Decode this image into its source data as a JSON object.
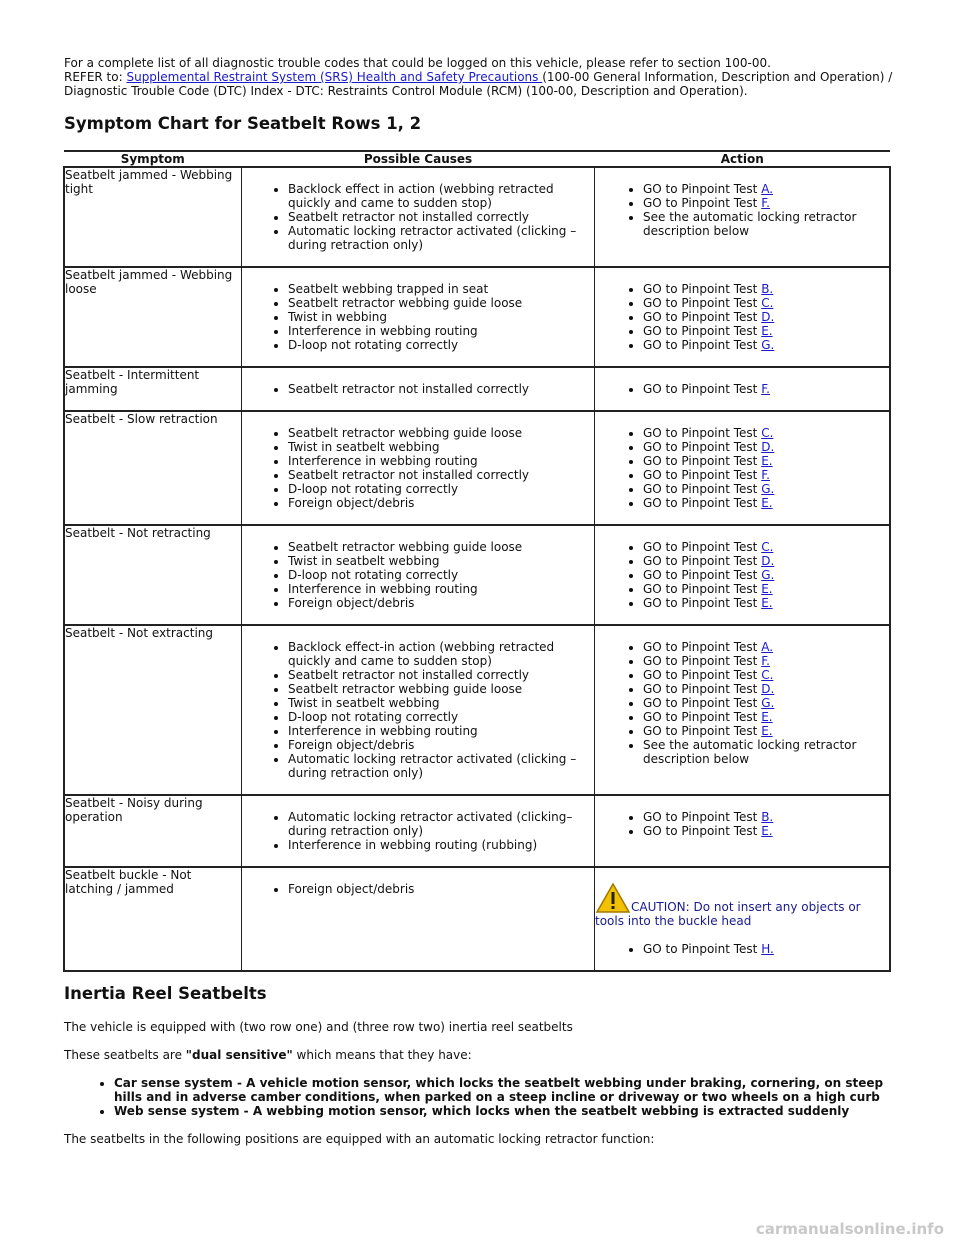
{
  "intro": {
    "line1": "For a complete list of all diagnostic trouble codes that could be logged on this vehicle, please refer to section 100-00.",
    "refer_label": "REFER to: ",
    "refer_link": "Supplemental Restraint System (SRS) Health and Safety Precautions ",
    "refer_rest": "(100-00 General Information, Description and Operation) /",
    "line3": "Diagnostic Trouble Code (DTC) Index - DTC: Restraints Control Module (RCM) (100-00, Description and Operation)."
  },
  "heading": "Symptom Chart for Seatbelt Rows 1, 2",
  "table": {
    "headers": [
      "Symptom",
      "Possible Causes",
      "Action"
    ],
    "rows": [
      {
        "symptom": "Seatbelt jammed - Webbing tight",
        "causes": [
          "Backlock effect in action (webbing retracted quickly and came to sudden stop)",
          "Seatbelt retractor not installed correctly",
          "Automatic locking retractor activated (clicking – during retraction only)"
        ],
        "actions": [
          {
            "text": "GO to Pinpoint Test ",
            "link": "A."
          },
          {
            "text": "GO to Pinpoint Test ",
            "link": "F."
          },
          {
            "text": "See the automatic locking retractor description below"
          }
        ]
      },
      {
        "symptom": "Seatbelt jammed - Webbing loose",
        "causes": [
          "Seatbelt webbing trapped in seat",
          "Seatbelt retractor webbing guide loose",
          "Twist in webbing",
          "Interference in webbing routing",
          "D-loop not rotating correctly"
        ],
        "actions": [
          {
            "text": "GO to Pinpoint Test ",
            "link": "B."
          },
          {
            "text": "GO to Pinpoint Test ",
            "link": "C."
          },
          {
            "text": "GO to Pinpoint Test ",
            "link": "D."
          },
          {
            "text": "GO to Pinpoint Test ",
            "link": "E."
          },
          {
            "text": "GO to Pinpoint Test ",
            "link": "G."
          }
        ]
      },
      {
        "symptom": "Seatbelt - Intermittent jamming",
        "causes": [
          "Seatbelt retractor not installed correctly"
        ],
        "actions": [
          {
            "text": "GO to Pinpoint Test ",
            "link": "F."
          }
        ]
      },
      {
        "symptom": "Seatbelt - Slow retraction",
        "causes": [
          "Seatbelt retractor webbing guide loose",
          "Twist in seatbelt webbing",
          "Interference in webbing routing",
          "Seatbelt retractor not installed correctly",
          "D-loop not rotating correctly",
          "Foreign object/debris"
        ],
        "actions": [
          {
            "text": "GO to Pinpoint Test ",
            "link": "C."
          },
          {
            "text": "GO to Pinpoint Test ",
            "link": "D."
          },
          {
            "text": "GO to Pinpoint Test ",
            "link": "E."
          },
          {
            "text": "GO to Pinpoint Test ",
            "link": "F."
          },
          {
            "text": "GO to Pinpoint Test ",
            "link": "G."
          },
          {
            "text": "GO to Pinpoint Test ",
            "link": "E."
          }
        ]
      },
      {
        "symptom": "Seatbelt - Not retracting",
        "causes": [
          "Seatbelt retractor webbing guide loose",
          "Twist in seatbelt webbing",
          "D-loop not rotating correctly",
          "Interference in webbing routing",
          "Foreign object/debris"
        ],
        "actions": [
          {
            "text": "GO to Pinpoint Test ",
            "link": "C."
          },
          {
            "text": "GO to Pinpoint Test ",
            "link": "D."
          },
          {
            "text": "GO to Pinpoint Test ",
            "link": "G."
          },
          {
            "text": "GO to Pinpoint Test ",
            "link": "E."
          },
          {
            "text": "GO to Pinpoint Test ",
            "link": "E."
          }
        ]
      },
      {
        "symptom": "Seatbelt - Not extracting",
        "causes": [
          "Backlock effect-in action (webbing retracted quickly and came to sudden stop)",
          "Seatbelt retractor not installed correctly",
          "Seatbelt retractor webbing guide loose",
          "Twist in seatbelt webbing",
          "D-loop not rotating correctly",
          "Interference in webbing routing",
          "Foreign object/debris",
          "Automatic locking retractor activated (clicking – during retraction only)"
        ],
        "actions": [
          {
            "text": "GO to Pinpoint Test ",
            "link": "A."
          },
          {
            "text": "GO to Pinpoint Test ",
            "link": "F."
          },
          {
            "text": "GO to Pinpoint Test ",
            "link": "C."
          },
          {
            "text": "GO to Pinpoint Test ",
            "link": "D."
          },
          {
            "text": "GO to Pinpoint Test ",
            "link": "G."
          },
          {
            "text": "GO to Pinpoint Test ",
            "link": "E."
          },
          {
            "text": "GO to Pinpoint Test ",
            "link": "E."
          },
          {
            "text": "See the automatic locking retractor description below"
          }
        ]
      },
      {
        "symptom": "Seatbelt - Noisy during operation",
        "causes": [
          "Automatic locking retractor activated (clicking– during retraction only)",
          "Interference in webbing routing (rubbing)"
        ],
        "actions": [
          {
            "text": "GO to Pinpoint Test ",
            "link": "B."
          },
          {
            "text": "GO to Pinpoint Test ",
            "link": "E."
          }
        ]
      },
      {
        "symptom": "Seatbelt buckle - Not latching / jammed",
        "causes": [
          "Foreign object/debris"
        ],
        "caution": "CAUTION: Do not insert any objects or tools into the buckle head",
        "actions": [
          {
            "text": "GO to Pinpoint Test ",
            "link": "H."
          }
        ]
      }
    ]
  },
  "section": {
    "heading": "Inertia Reel Seatbelts",
    "paragraph1": "The vehicle is equipped with (two row one) and (three row two) inertia reel seatbelts",
    "paragraph2_start": "These seatbelts are ",
    "paragraph2_bold": "\"dual sensitive\"",
    "paragraph2_end": " which means that they have:",
    "bullets": [
      "Car sense system - A vehicle motion sensor, which locks the seatbelt webbing under braking, cornering, on steep hills and in adverse camber conditions, when parked on a steep incline or driveway or two wheels on a high curb",
      "Web sense system - A webbing motion sensor, which locks when the seatbelt webbing is extracted suddenly"
    ],
    "paragraph3": "The seatbelts in the following positions are equipped with an automatic locking retractor function:"
  },
  "watermark": "carmanualsonline.info"
}
